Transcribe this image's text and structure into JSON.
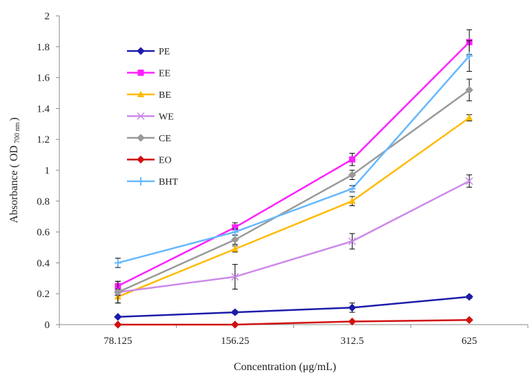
{
  "chart_data": {
    "type": "line",
    "title": "",
    "xlabel": "Concentration (μg/mL)",
    "ylabel": "Absorbance ( OD",
    "ylabel_sub": "700 nm",
    "ylabel_end": ")",
    "categories": [
      "78.125",
      "156.25",
      "312.5",
      "625"
    ],
    "ylim": [
      0,
      2
    ],
    "yticks": [
      0,
      0.2,
      0.4,
      0.6,
      0.8,
      1,
      1.2,
      1.4,
      1.6,
      1.8,
      2
    ],
    "ytick_labels": [
      "0",
      "0.2",
      "0.4",
      "0.6",
      "0.8",
      "1",
      "1.2",
      "1.4",
      "1.6",
      "1.8",
      "2"
    ],
    "grid": false,
    "legend_position": "top-left",
    "series": [
      {
        "name": "PE",
        "color": "#1c1caa",
        "marker": "diamond",
        "values": [
          0.05,
          0.08,
          0.11,
          0.18
        ],
        "errors": [
          0.0,
          0.01,
          0.03,
          0.01
        ]
      },
      {
        "name": "EE",
        "color": "#ff20ff",
        "marker": "square",
        "values": [
          0.25,
          0.63,
          1.07,
          1.83
        ],
        "errors": [
          0.03,
          0.03,
          0.04,
          0.08
        ]
      },
      {
        "name": "BE",
        "color": "#ffbb00",
        "marker": "triangle",
        "values": [
          0.18,
          0.49,
          0.8,
          1.34
        ],
        "errors": [
          0.04,
          0.02,
          0.03,
          0.02
        ]
      },
      {
        "name": "WE",
        "color": "#cc88e8",
        "marker": "x",
        "values": [
          0.21,
          0.31,
          0.54,
          0.93
        ],
        "errors": [
          0.02,
          0.08,
          0.05,
          0.04
        ]
      },
      {
        "name": "CE",
        "color": "#999999",
        "marker": "diamond",
        "values": [
          0.21,
          0.55,
          0.97,
          1.52
        ],
        "errors": [
          0.07,
          0.03,
          0.03,
          0.07
        ]
      },
      {
        "name": "EO",
        "color": "#d01010",
        "marker": "diamond",
        "values": [
          0.0,
          0.0,
          0.02,
          0.03
        ],
        "errors": [
          0.0,
          0.0,
          0.0,
          0.0
        ]
      },
      {
        "name": "BHT",
        "color": "#66b8ff",
        "marker": "plus",
        "values": [
          0.4,
          0.6,
          0.88,
          1.74
        ],
        "errors": [
          0.03,
          0.02,
          0.02,
          0.1
        ]
      }
    ]
  }
}
